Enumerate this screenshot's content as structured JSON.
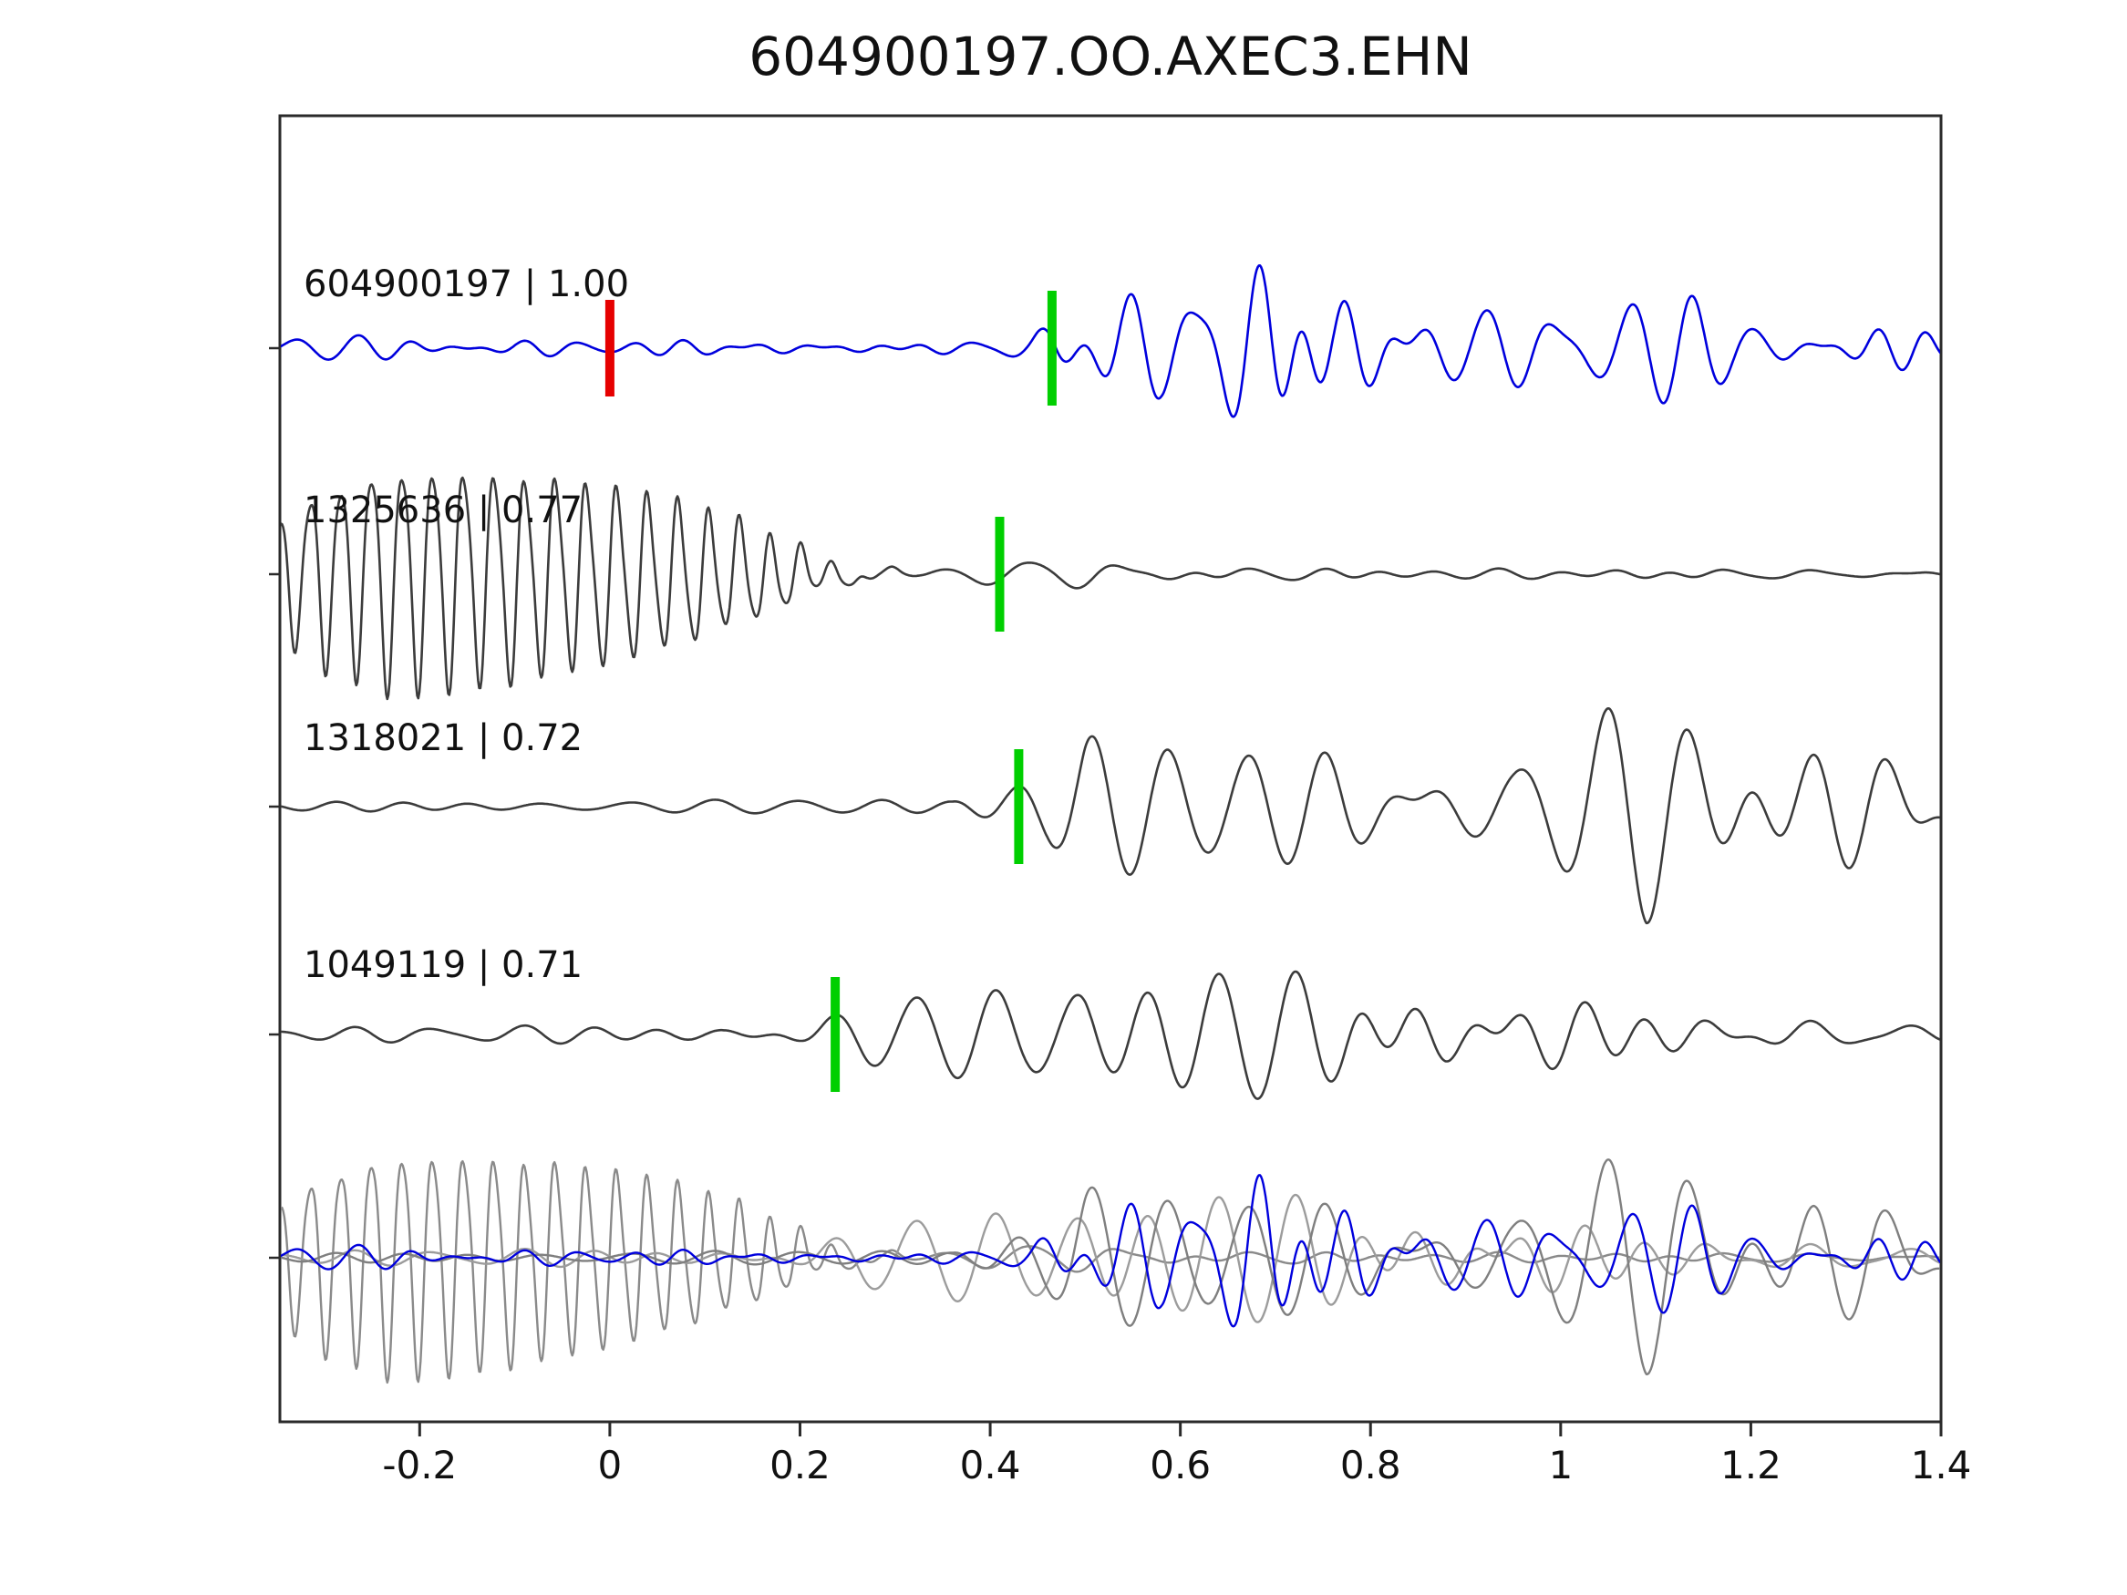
{
  "title": "604900197.OO.AXEC3.EHN",
  "colors": {
    "green_pick": "#00cf00",
    "red_pick": "#e60000",
    "axis": "#2a2a2a",
    "text": "#111111",
    "blue_trace": "#0000dd",
    "gray_trace": "#3c3c3c"
  },
  "chart_data": {
    "type": "line",
    "title": "604900197.OO.AXEC3.EHN",
    "xlabel": "",
    "ylabel": "",
    "grid": false,
    "x_range": [
      -0.347,
      1.4
    ],
    "x_ticks": [
      -0.2,
      0,
      0.2,
      0.4,
      0.6,
      0.8,
      1,
      1.2,
      1.4
    ],
    "x_tick_labels": [
      "-0.2",
      "0",
      "0.2",
      "0.4",
      "0.6",
      "0.8",
      "1",
      "1.2",
      "1.4"
    ],
    "panels": "four stacked waveform traces plus combined overlay panel at bottom",
    "traces": [
      {
        "id": "604900197",
        "correlation": 1.0,
        "label": "604900197 | 1.00",
        "color": "#0000dd",
        "green_pick": 0.465,
        "red_pick": 0.0,
        "synthesis": {
          "parts": [
            {
              "kind": "noise",
              "seed": 101,
              "n": 45,
              "fmin": 12,
              "fmax": 25,
              "scale": 130,
              "env": [
                [
                  -0.35,
                  0.12
                ],
                [
                  0.3,
                  0.12
                ],
                [
                  0.4,
                  0.15
                ],
                [
                  0.44,
                  0.3
                ],
                [
                  0.47,
                  0.8
                ],
                [
                  0.53,
                  1.0
                ],
                [
                  0.58,
                  0.7
                ],
                [
                  0.64,
                  0.85
                ],
                [
                  0.7,
                  1.0
                ],
                [
                  0.76,
                  0.55
                ],
                [
                  0.85,
                  0.45
                ],
                [
                  1.0,
                  0.5
                ],
                [
                  1.15,
                  0.45
                ],
                [
                  1.4,
                  0.4
                ]
              ]
            }
          ]
        }
      },
      {
        "id": "1325636",
        "correlation": 0.77,
        "label": "1325636 | 0.77",
        "color": "#3c3c3c",
        "green_pick": 0.41,
        "red_pick": null,
        "synthesis": {
          "parts": [
            {
              "kind": "tone",
              "seed": 7,
              "f": 31,
              "scale": 140,
              "env": [
                [
                  -0.35,
                  0.5
                ],
                [
                  -0.3,
                  0.8
                ],
                [
                  -0.22,
                  1.0
                ],
                [
                  -0.12,
                  0.92
                ],
                [
                  0.0,
                  0.78
                ],
                [
                  0.08,
                  0.62
                ],
                [
                  0.14,
                  0.45
                ],
                [
                  0.19,
                  0.28
                ],
                [
                  0.23,
                  0.1
                ],
                [
                  0.27,
                  0.03
                ],
                [
                  0.33,
                  0.0
                ],
                [
                  1.4,
                  0.0
                ]
              ]
            },
            {
              "kind": "noise",
              "seed": 8,
              "n": 40,
              "fmin": 8,
              "fmax": 22,
              "scale": 20,
              "env": [
                [
                  -0.35,
                  0.2
                ],
                [
                  0.2,
                  0.3
                ],
                [
                  0.28,
                  0.8
                ],
                [
                  0.45,
                  0.8
                ],
                [
                  0.7,
                  0.6
                ],
                [
                  1.4,
                  0.55
                ]
              ]
            }
          ]
        }
      },
      {
        "id": "1318021",
        "correlation": 0.72,
        "label": "1318021 | 0.72",
        "color": "#3c3c3c",
        "green_pick": 0.43,
        "red_pick": null,
        "synthesis": {
          "parts": [
            {
              "kind": "noise",
              "seed": 55,
              "n": 45,
              "fmin": 9,
              "fmax": 18,
              "scale": 140,
              "env": [
                [
                  -0.35,
                  0.06
                ],
                [
                  0.25,
                  0.07
                ],
                [
                  0.36,
                  0.1
                ],
                [
                  0.42,
                  0.35
                ],
                [
                  0.46,
                  0.6
                ],
                [
                  0.5,
                  1.0
                ],
                [
                  0.56,
                  0.8
                ],
                [
                  0.62,
                  0.55
                ],
                [
                  0.72,
                  0.5
                ],
                [
                  0.85,
                  0.45
                ],
                [
                  0.95,
                  0.45
                ],
                [
                  1.03,
                  0.7
                ],
                [
                  1.09,
                  1.0
                ],
                [
                  1.16,
                  0.75
                ],
                [
                  1.25,
                  0.5
                ],
                [
                  1.4,
                  0.45
                ]
              ]
            }
          ]
        }
      },
      {
        "id": "1049119",
        "correlation": 0.71,
        "label": "1049119 | 0.71",
        "color": "#3c3c3c",
        "green_pick": 0.237,
        "red_pick": null,
        "synthesis": {
          "parts": [
            {
              "kind": "noise",
              "seed": 77,
              "n": 45,
              "fmin": 9,
              "fmax": 18,
              "scale": 115,
              "env": [
                [
                  -0.35,
                  0.08
                ],
                [
                  0.12,
                  0.09
                ],
                [
                  0.2,
                  0.2
                ],
                [
                  0.27,
                  0.4
                ],
                [
                  0.35,
                  0.45
                ],
                [
                  0.44,
                  0.6
                ],
                [
                  0.5,
                  1.0
                ],
                [
                  0.57,
                  0.8
                ],
                [
                  0.66,
                  0.7
                ],
                [
                  0.78,
                  0.75
                ],
                [
                  0.9,
                  0.6
                ],
                [
                  1.05,
                  0.45
                ],
                [
                  1.2,
                  0.35
                ],
                [
                  1.4,
                  0.3
                ]
              ]
            }
          ]
        }
      }
    ],
    "overlay": {
      "members": [
        {
          "trace": 1,
          "color": "#8a8a8a"
        },
        {
          "trace": 3,
          "color": "#9c9c9c"
        },
        {
          "trace": 2,
          "color": "#7f7f7f"
        },
        {
          "trace": 0,
          "color": "#0000dd"
        }
      ]
    }
  }
}
